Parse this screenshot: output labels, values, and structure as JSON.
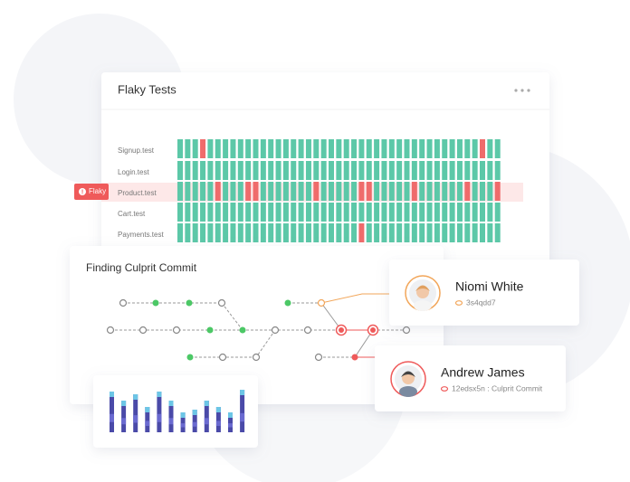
{
  "flaky_tests": {
    "title": "Flaky Tests",
    "tests": [
      "Signup.test",
      "Login.test",
      "Product.test",
      "Cart.test",
      "Payments.test"
    ],
    "badge": "Flaky"
  },
  "culprit": {
    "title": "Finding Culprit Commit",
    "commits": [
      {
        "name": "Niomi White",
        "hash": "3s4qdd7"
      },
      {
        "name": "Andrew James",
        "hash": "12edsx5n : Culprit Commit"
      }
    ]
  }
}
